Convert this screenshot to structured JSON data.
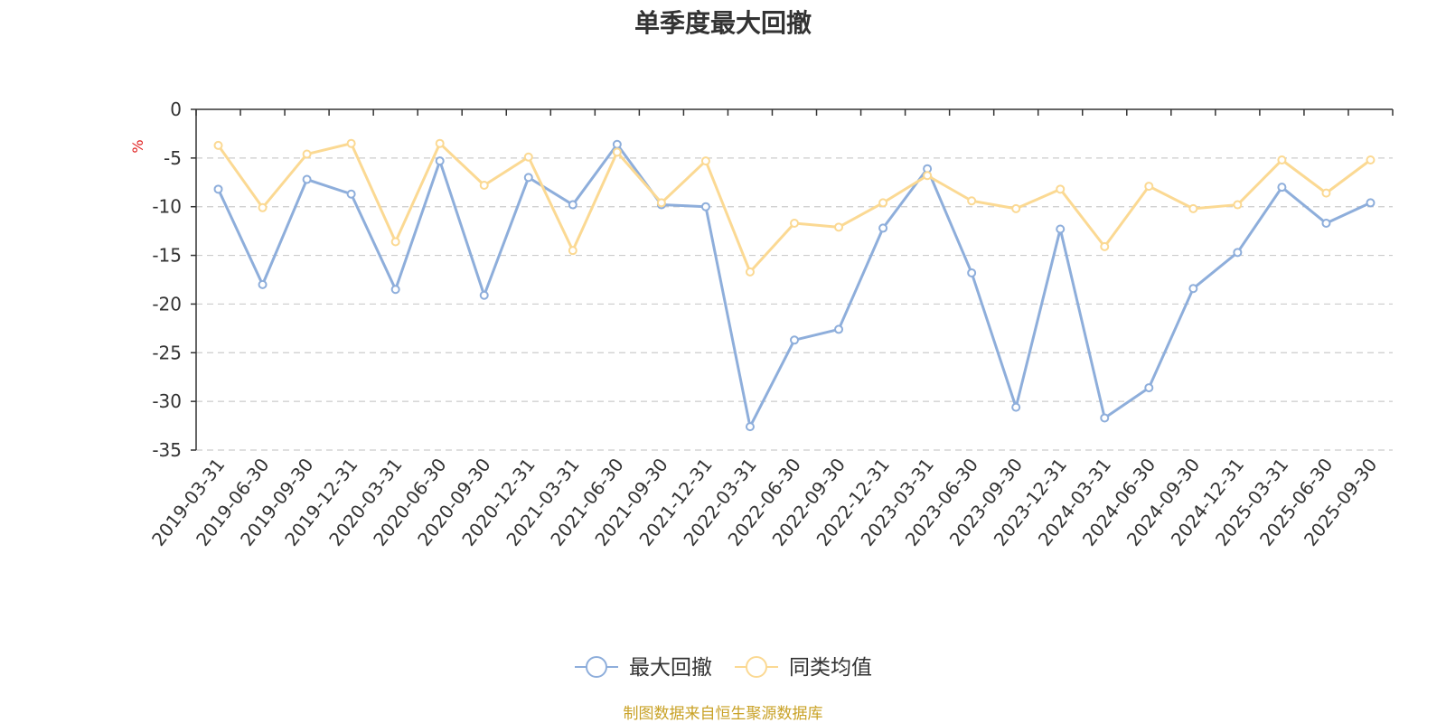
{
  "chart_data": {
    "type": "line",
    "title": "单季度最大回撤",
    "ylabel": "%",
    "xlabel": "",
    "ylim": [
      -35,
      0
    ],
    "yticks": [
      0,
      -5,
      -10,
      -15,
      -20,
      -25,
      -30,
      -35
    ],
    "grid": true,
    "legend_position": "bottom-center",
    "categories": [
      "2019-03-31",
      "2019-06-30",
      "2019-09-30",
      "2019-12-31",
      "2020-03-31",
      "2020-06-30",
      "2020-09-30",
      "2020-12-31",
      "2021-03-31",
      "2021-06-30",
      "2021-09-30",
      "2021-12-31",
      "2022-03-31",
      "2022-06-30",
      "2022-09-30",
      "2022-12-31",
      "2023-03-31",
      "2023-06-30",
      "2023-09-30",
      "2023-12-31",
      "2024-03-31",
      "2024-06-30",
      "2024-09-30",
      "2024-12-31",
      "2025-03-31",
      "2025-06-30",
      "2025-09-30"
    ],
    "series": [
      {
        "name": "最大回撤",
        "color": "#8eaedb",
        "values": [
          -8.2,
          -18.0,
          -7.2,
          -8.7,
          -18.5,
          -5.3,
          -19.1,
          -7.0,
          -9.8,
          -3.6,
          -9.8,
          -10.0,
          -32.6,
          -23.7,
          -22.6,
          -12.2,
          -6.1,
          -16.8,
          -30.6,
          -12.3,
          -31.7,
          -28.6,
          -18.4,
          -14.7,
          -8.0,
          -11.7,
          -9.6
        ]
      },
      {
        "name": "同类均值",
        "color": "#fbd993",
        "values": [
          -3.7,
          -10.1,
          -4.6,
          -3.5,
          -13.6,
          -3.5,
          -7.8,
          -4.9,
          -14.5,
          -4.4,
          -9.6,
          -5.3,
          -16.7,
          -11.7,
          -12.1,
          -9.6,
          -6.8,
          -9.4,
          -10.2,
          -8.2,
          -14.1,
          -7.9,
          -10.2,
          -9.8,
          -5.2,
          -8.6,
          -5.2
        ]
      }
    ]
  },
  "footer": {
    "source": "制图数据来自恒生聚源数据库"
  }
}
